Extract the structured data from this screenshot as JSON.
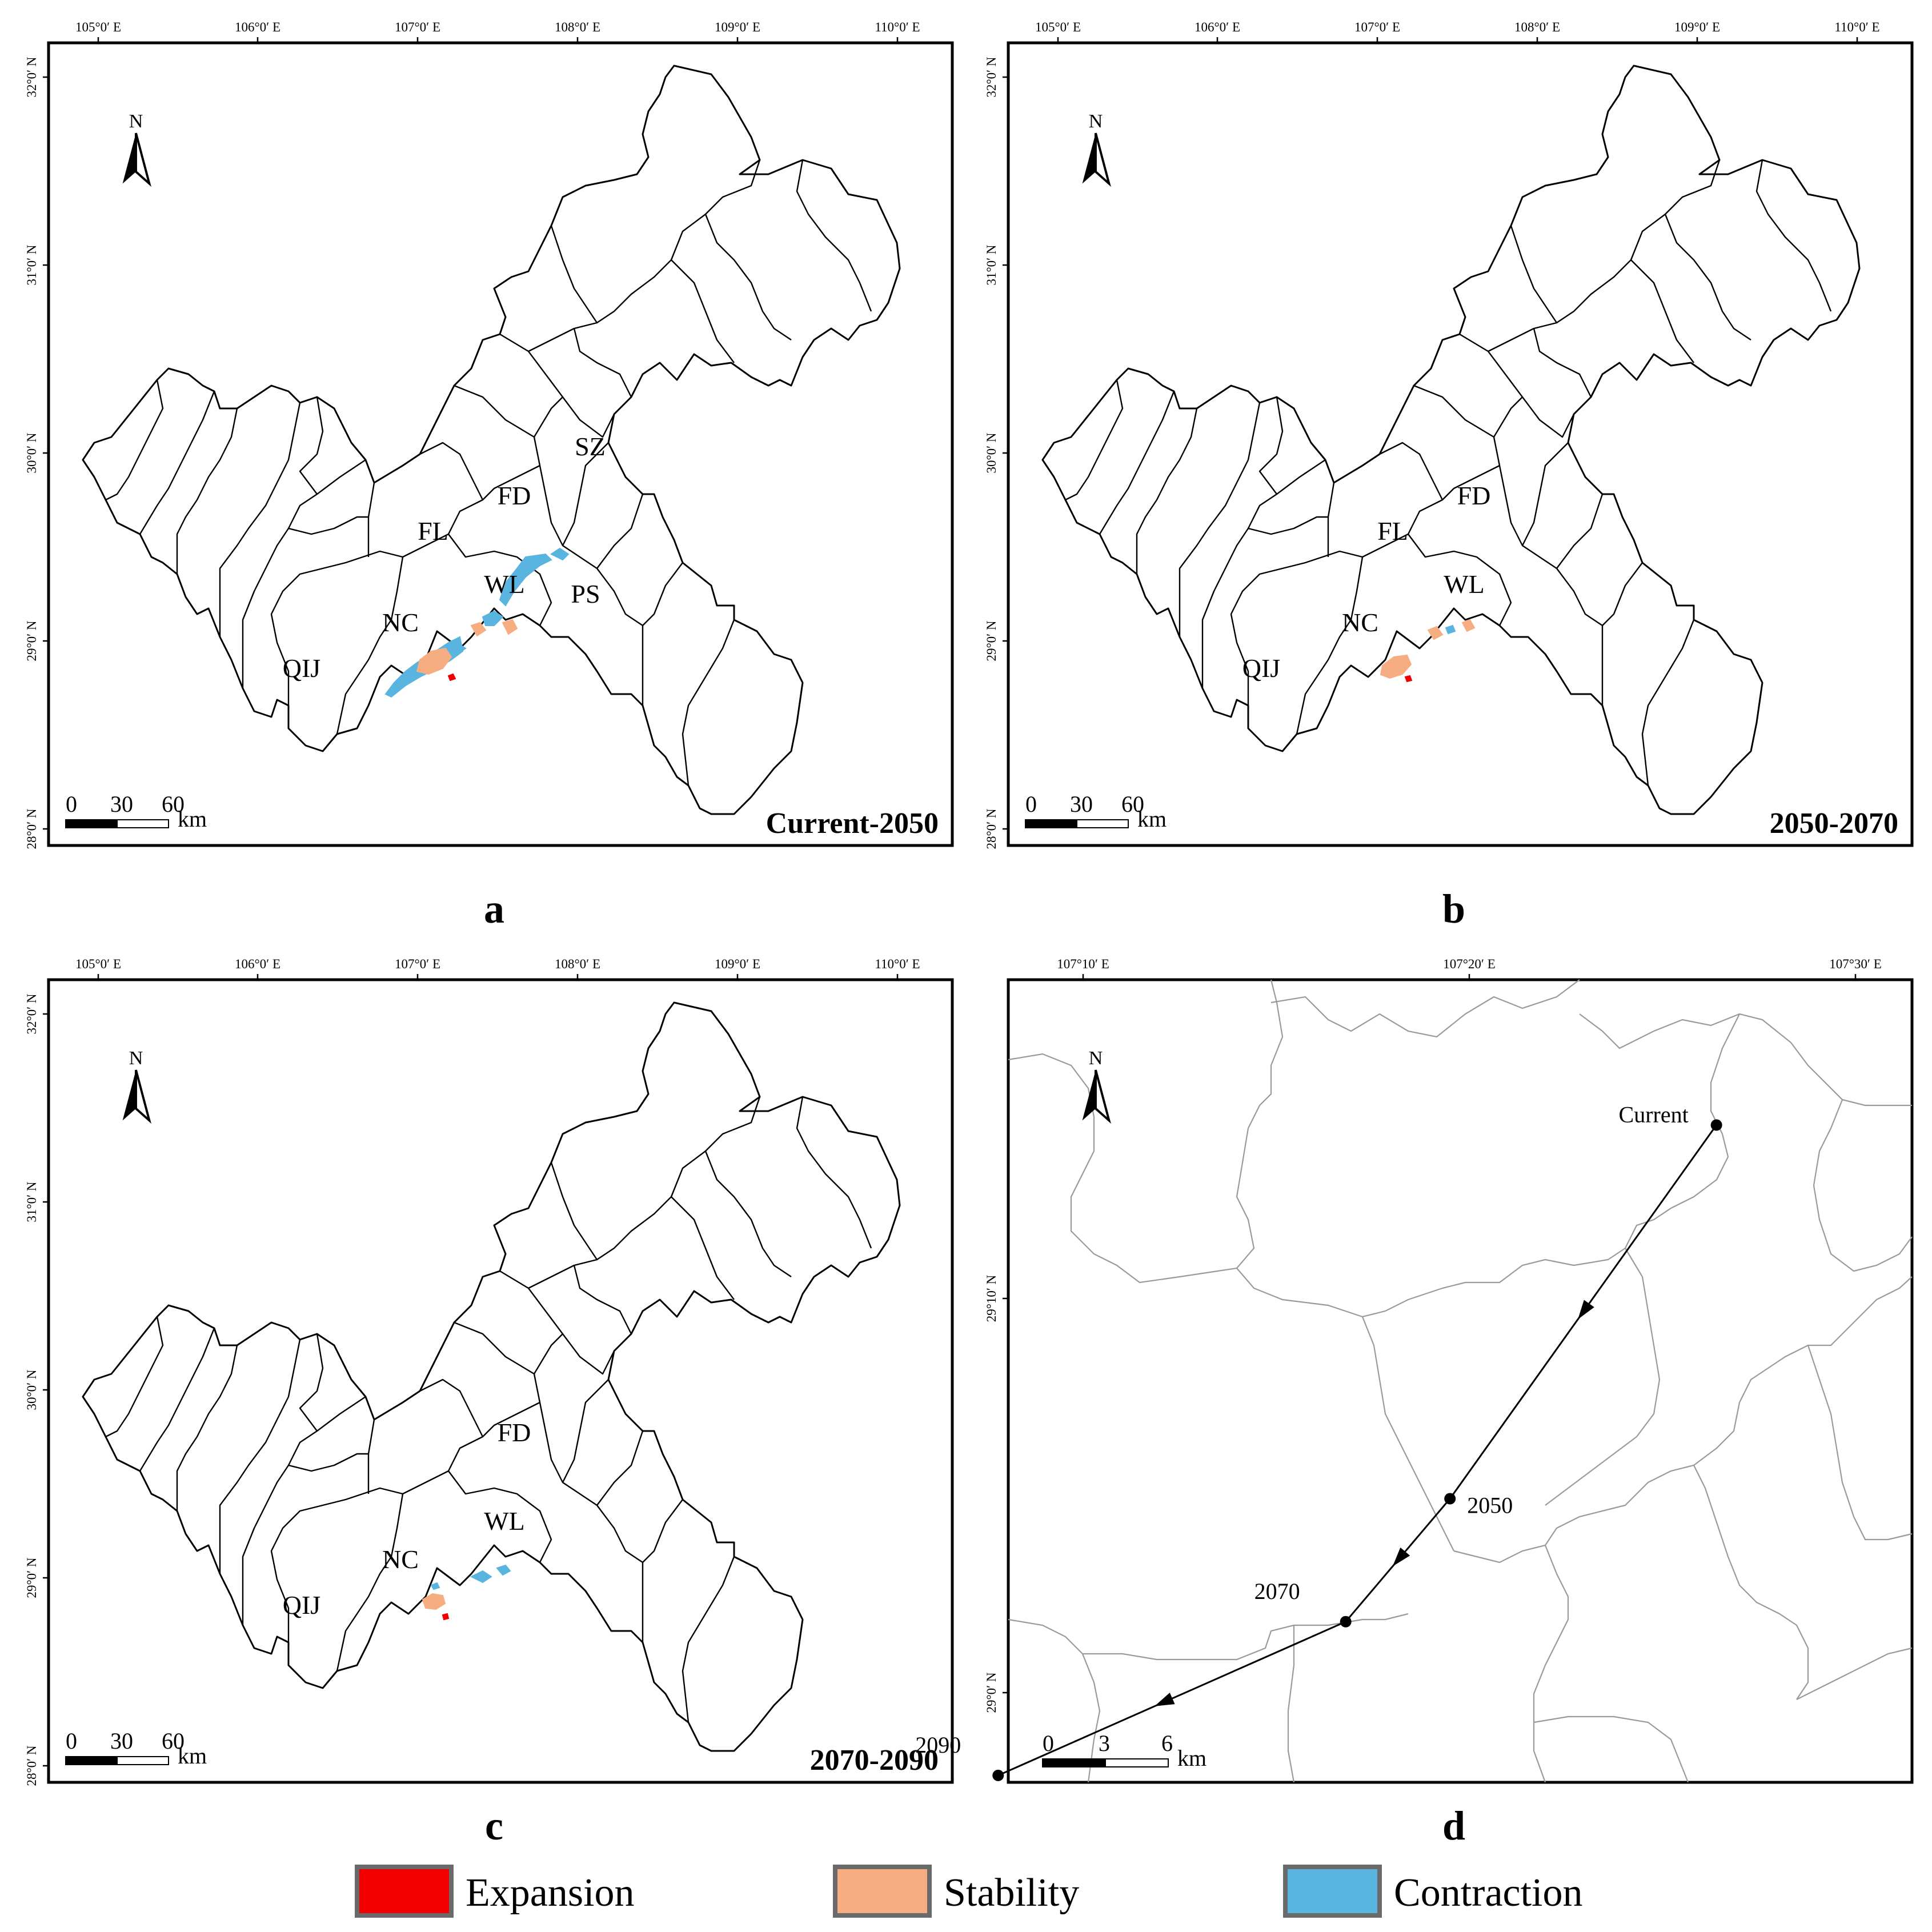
{
  "colors": {
    "expansion": "#f20000",
    "stability": "#f7ad82",
    "contraction": "#5ab4e0"
  },
  "lon_labels": [
    "105°0′ E",
    "106°0′ E",
    "107°0′ E",
    "108°0′ E",
    "109°0′ E",
    "110°0′ E"
  ],
  "lat_labels": [
    "32°0′ N",
    "31°0′ N",
    "30°0′ N",
    "29°0′ N",
    "28°0′ N"
  ],
  "north_label": "N",
  "scale": {
    "ticks": [
      "0",
      "30",
      "60"
    ],
    "unit": "km"
  },
  "panels": [
    {
      "letter": "a",
      "period": "Current-2050",
      "counties": [
        "SZ",
        "FD",
        "FL",
        "WL",
        "PS",
        "NC",
        "QIJ"
      ]
    },
    {
      "letter": "b",
      "period": "2050-2070",
      "counties": [
        "FD",
        "FL",
        "WL",
        "NC",
        "QIJ"
      ]
    },
    {
      "letter": "c",
      "period": "2070-2090",
      "counties": [
        "FD",
        "WL",
        "NC",
        "QIJ"
      ]
    }
  ],
  "zoom_panel": {
    "letter": "d",
    "lon_labels": [
      "107°10′ E",
      "107°20′ E",
      "107°30′ E"
    ],
    "lat_labels": [
      "29°10′ N",
      "29°0′ N"
    ],
    "scale": {
      "ticks": [
        "0",
        "3",
        "6"
      ],
      "unit": "km"
    },
    "track": [
      {
        "label": "Current",
        "lon": 107.44,
        "lat": 29.24
      },
      {
        "label": "2050",
        "lon": 107.325,
        "lat": 29.082
      },
      {
        "label": "2070",
        "lon": 107.28,
        "lat": 29.03
      },
      {
        "label": "2090",
        "lon": 107.13,
        "lat": 28.965
      }
    ]
  },
  "legend": [
    {
      "label": "Expansion",
      "key": "expansion"
    },
    {
      "label": "Stability",
      "key": "stability"
    },
    {
      "label": "Contraction",
      "key": "contraction"
    }
  ]
}
